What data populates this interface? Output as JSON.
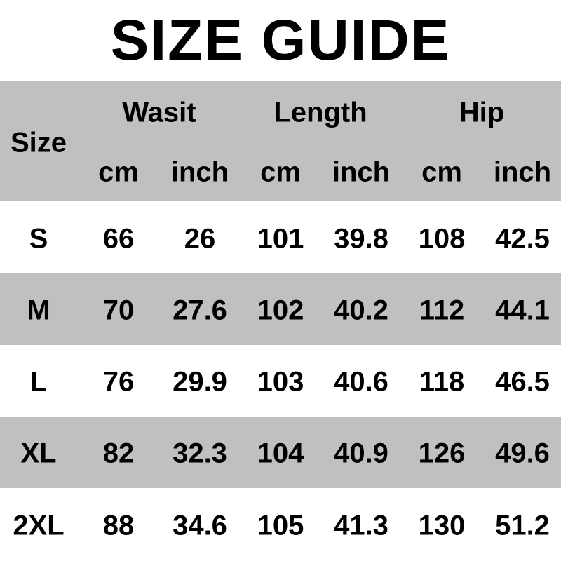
{
  "title": "SIZE GUIDE",
  "header": {
    "size_label": "Size",
    "groups": [
      "Wasit",
      "Length",
      "Hip"
    ],
    "units": [
      "cm",
      "inch",
      "cm",
      "inch",
      "cm",
      "inch"
    ]
  },
  "rows": [
    {
      "size": "S",
      "values": [
        "66",
        "26",
        "101",
        "39.8",
        "108",
        "42.5"
      ]
    },
    {
      "size": "M",
      "values": [
        "70",
        "27.6",
        "102",
        "40.2",
        "112",
        "44.1"
      ]
    },
    {
      "size": "L",
      "values": [
        "76",
        "29.9",
        "103",
        "40.6",
        "118",
        "46.5"
      ]
    },
    {
      "size": "XL",
      "values": [
        "82",
        "32.3",
        "104",
        "40.9",
        "126",
        "49.6"
      ]
    },
    {
      "size": "2XL",
      "values": [
        "88",
        "34.6",
        "105",
        "41.3",
        "130",
        "51.2"
      ]
    }
  ],
  "colors": {
    "stripe": "#c0c0c0",
    "background": "#ffffff",
    "text": "#000000"
  }
}
